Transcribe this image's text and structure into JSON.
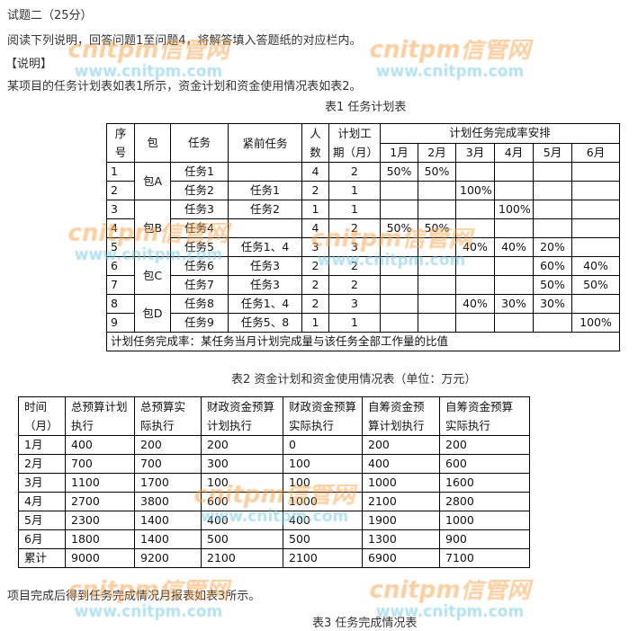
{
  "header": {
    "title": "试题二（25分）",
    "instruction": "阅读下列说明，回答问题1至问题4，将解答填入答题纸的对应栏内。",
    "section": "【说明】",
    "intro": "某项目的任务计划表如表1所示，资金计划和资金使用情况表如表2。"
  },
  "table1": {
    "caption": "表1 任务计划表",
    "headers": {
      "seq": "序号",
      "pkg": "包",
      "task": "任务",
      "pred": "紧前任务",
      "people": "人数",
      "duration": "计划工期（月）",
      "schedule": "计划任务完成率安排",
      "months": [
        "1月",
        "2月",
        "3月",
        "4月",
        "5月",
        "6月"
      ]
    },
    "rows": [
      {
        "seq": "1",
        "pkg": "包A",
        "task": "任务1",
        "pred": "",
        "people": "4",
        "dur": "2",
        "m": [
          "50%",
          "50%",
          "",
          "",
          "",
          ""
        ]
      },
      {
        "seq": "2",
        "pkg": "",
        "task": "任务2",
        "pred": "任务1",
        "people": "2",
        "dur": "1",
        "m": [
          "",
          "",
          "100%",
          "",
          "",
          ""
        ]
      },
      {
        "seq": "3",
        "pkg": "包B",
        "task": "任务3",
        "pred": "任务2",
        "people": "1",
        "dur": "1",
        "m": [
          "",
          "",
          "",
          "100%",
          "",
          ""
        ]
      },
      {
        "seq": "4",
        "pkg": "",
        "task": "任务4",
        "pred": "",
        "people": "4",
        "dur": "2",
        "m": [
          "50%",
          "50%",
          "",
          "",
          "",
          ""
        ]
      },
      {
        "seq": "5",
        "pkg": "",
        "task": "任务5",
        "pred": "任务1、4",
        "people": "3",
        "dur": "3",
        "m": [
          "",
          "",
          "40%",
          "40%",
          "20%",
          ""
        ]
      },
      {
        "seq": "6",
        "pkg": "包C",
        "task": "任务6",
        "pred": "任务3",
        "people": "2",
        "dur": "2",
        "m": [
          "",
          "",
          "",
          "",
          "60%",
          "40%"
        ]
      },
      {
        "seq": "7",
        "pkg": "",
        "task": "任务7",
        "pred": "任务3",
        "people": "2",
        "dur": "2",
        "m": [
          "",
          "",
          "",
          "",
          "50%",
          "50%"
        ]
      },
      {
        "seq": "8",
        "pkg": "包D",
        "task": "任务8",
        "pred": "任务1、4",
        "people": "2",
        "dur": "3",
        "m": [
          "",
          "",
          "40%",
          "30%",
          "30%",
          ""
        ]
      },
      {
        "seq": "9",
        "pkg": "",
        "task": "任务9",
        "pred": "任务5、8",
        "people": "1",
        "dur": "1",
        "m": [
          "",
          "",
          "",
          "",
          "",
          "100%"
        ]
      }
    ],
    "note": "计划任务完成率：某任务当月计划完成量与该任务全部工作量的比值"
  },
  "table2": {
    "caption": "表2 资金计划和资金使用情况表（单位：万元）",
    "headers": [
      "时间（月）",
      "总预算计划执行",
      "总预算实际执行",
      "财政资金预算计划执行",
      "财政资金预算实际执行",
      "自筹资金预算计划执行",
      "自筹资金预算实际执行"
    ],
    "rows": [
      [
        "1月",
        "400",
        "200",
        "200",
        "0",
        "200",
        "200"
      ],
      [
        "2月",
        "700",
        "700",
        "300",
        "100",
        "400",
        "600"
      ],
      [
        "3月",
        "1100",
        "1700",
        "100",
        "100",
        "1000",
        "1600"
      ],
      [
        "4月",
        "2700",
        "3800",
        "600",
        "1000",
        "2100",
        "2800"
      ],
      [
        "5月",
        "2300",
        "1400",
        "400",
        "400",
        "1900",
        "1000"
      ],
      [
        "6月",
        "1800",
        "1400",
        "500",
        "500",
        "1300",
        "900"
      ],
      [
        "累计",
        "9000",
        "9200",
        "2100",
        "2100",
        "6900",
        "7100"
      ]
    ]
  },
  "footer": {
    "text": "项目完成后得到任务完成情况月报表如表3所示。",
    "caption3": "表3 任务完成情况表"
  },
  "watermark": {
    "logo": "cnitpm信管网",
    "url": "www.cnitpm.com"
  }
}
